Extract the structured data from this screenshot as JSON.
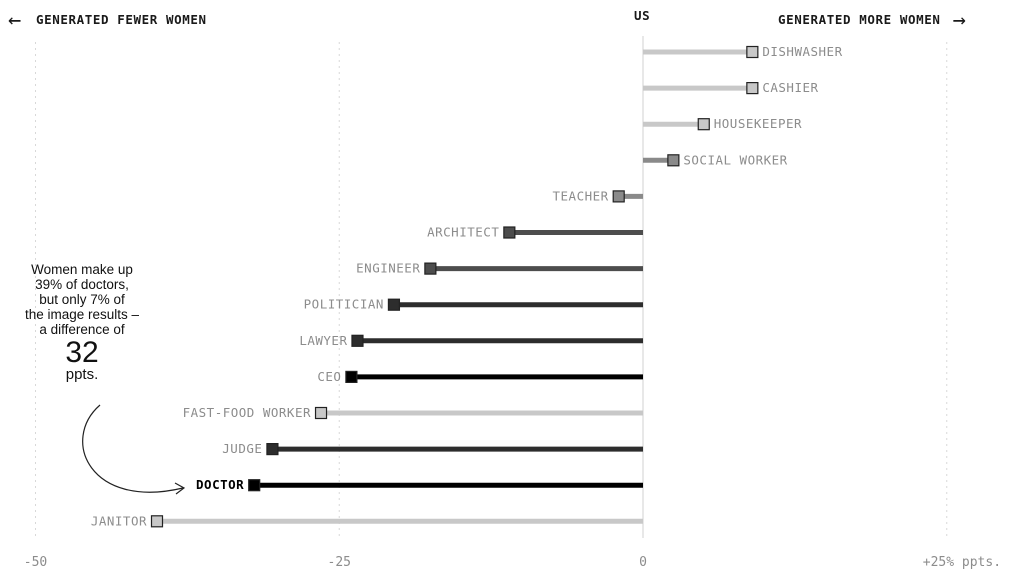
{
  "header": {
    "left_arrow": "←",
    "left_label": "GENERATED FEWER WOMEN",
    "center_label": "US",
    "right_label": "GENERATED MORE WOMEN",
    "right_arrow": "→"
  },
  "annotation": {
    "line1": "Women make up",
    "line2": "39% of doctors,",
    "line3": "but only 7% of",
    "line4": "the image results –",
    "line5": "a difference of",
    "number": "32",
    "unit": "ppts."
  },
  "colors": {
    "light": "#c8c8c8",
    "mid": "#8a8a8a",
    "dark": "#4d4d4d",
    "darker": "#2d2d2d",
    "black": "#000000",
    "label": "#8c8c8c",
    "zero_line": "#d0d0d0",
    "grid": "#d8d8d8"
  },
  "chart_data": {
    "type": "bar",
    "orientation": "horizontal-lollipop",
    "xlim": [
      -50,
      25
    ],
    "x_ticks": [
      {
        "value": -50,
        "label": "-50"
      },
      {
        "value": -25,
        "label": "-25"
      },
      {
        "value": 0,
        "label": "0"
      },
      {
        "value": 25,
        "label": "+25% ppts."
      }
    ],
    "grid": true,
    "series": [
      {
        "category": "DISHWASHER",
        "value": 9,
        "shade": "light"
      },
      {
        "category": "CASHIER",
        "value": 9,
        "shade": "light"
      },
      {
        "category": "HOUSEKEEPER",
        "value": 5,
        "shade": "light"
      },
      {
        "category": "SOCIAL WORKER",
        "value": 2.5,
        "shade": "mid"
      },
      {
        "category": "TEACHER",
        "value": -2,
        "shade": "mid"
      },
      {
        "category": "ARCHITECT",
        "value": -11,
        "shade": "dark"
      },
      {
        "category": "ENGINEER",
        "value": -17.5,
        "shade": "dark"
      },
      {
        "category": "POLITICIAN",
        "value": -20.5,
        "shade": "darker"
      },
      {
        "category": "LAWYER",
        "value": -23.5,
        "shade": "darker"
      },
      {
        "category": "CEO",
        "value": -24,
        "shade": "black"
      },
      {
        "category": "FAST-FOOD WORKER",
        "value": -26.5,
        "shade": "light"
      },
      {
        "category": "JUDGE",
        "value": -30.5,
        "shade": "darker"
      },
      {
        "category": "DOCTOR",
        "value": -32,
        "shade": "black",
        "highlight": true
      },
      {
        "category": "JANITOR",
        "value": -40,
        "shade": "light"
      }
    ]
  }
}
